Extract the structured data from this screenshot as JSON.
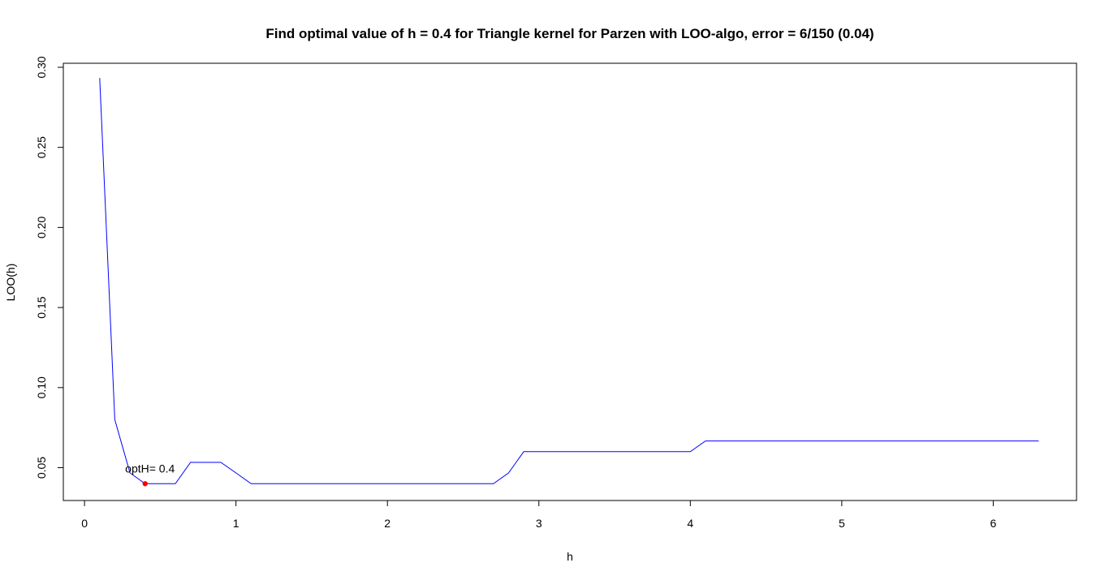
{
  "chart_data": {
    "type": "line",
    "title": "Find optimal value of h = 0.4 for Triangle kernel for Parzen with LOO-algo, error = 6/150 (0.04)",
    "xlabel": "h",
    "ylabel": "LOO(h)",
    "xlim": [
      -0.14,
      6.55
    ],
    "ylim": [
      0.0295,
      0.3025
    ],
    "x_ticks": [
      0,
      1,
      2,
      3,
      4,
      5,
      6
    ],
    "x_tick_labels": [
      "0",
      "1",
      "2",
      "3",
      "4",
      "5",
      "6"
    ],
    "y_ticks": [
      0.05,
      0.1,
      0.15,
      0.2,
      0.25,
      0.3
    ],
    "y_tick_labels": [
      "0.05",
      "0.10",
      "0.15",
      "0.20",
      "0.25",
      "0.30"
    ],
    "grid": false,
    "series": [
      {
        "color": "#0000ff",
        "x": [
          0.1,
          0.2,
          0.3,
          0.4,
          0.5,
          0.6,
          0.7,
          0.8,
          0.9,
          1.0,
          1.1,
          1.2,
          1.3,
          1.4,
          1.5,
          1.6,
          1.7,
          1.8,
          1.9,
          2.0,
          2.1,
          2.2,
          2.3,
          2.4,
          2.5,
          2.6,
          2.7,
          2.8,
          2.9,
          3.0,
          3.1,
          3.2,
          3.3,
          3.4,
          3.5,
          3.6,
          3.7,
          3.8,
          3.9,
          4.0,
          4.1,
          4.2,
          4.3,
          4.4,
          4.5,
          4.6,
          4.7,
          4.8,
          4.9,
          5.0,
          5.1,
          5.2,
          5.3,
          5.4,
          5.5,
          5.6,
          5.7,
          5.8,
          5.9,
          6.0,
          6.1,
          6.2,
          6.3
        ],
        "y": [
          0.2933,
          0.08,
          0.0467,
          0.04,
          0.04,
          0.04,
          0.0533,
          0.0533,
          0.0533,
          0.0467,
          0.04,
          0.04,
          0.04,
          0.04,
          0.04,
          0.04,
          0.04,
          0.04,
          0.04,
          0.04,
          0.04,
          0.04,
          0.04,
          0.04,
          0.04,
          0.04,
          0.04,
          0.0467,
          0.06,
          0.06,
          0.06,
          0.06,
          0.06,
          0.06,
          0.06,
          0.06,
          0.06,
          0.06,
          0.06,
          0.06,
          0.0667,
          0.0667,
          0.0667,
          0.0667,
          0.0667,
          0.0667,
          0.0667,
          0.0667,
          0.0667,
          0.0667,
          0.0667,
          0.0667,
          0.0667,
          0.0667,
          0.0667,
          0.0667,
          0.0667,
          0.0667,
          0.0667,
          0.0667,
          0.0667,
          0.0667,
          0.0667
        ]
      }
    ],
    "highlight_point": {
      "x": 0.4,
      "y": 0.04,
      "color": "#ff0000",
      "label": "optH= 0.4"
    }
  }
}
